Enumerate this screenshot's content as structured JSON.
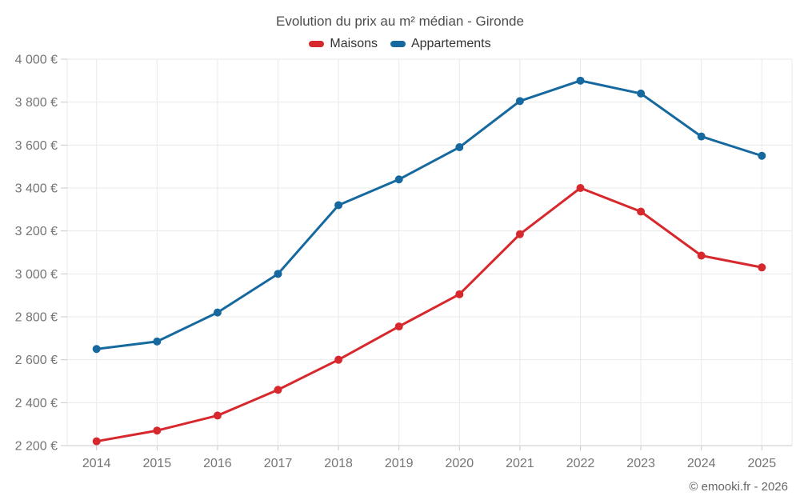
{
  "chart_data": {
    "type": "line",
    "title": "Evolution du prix au m² médian - Gironde",
    "categories": [
      "2014",
      "2015",
      "2016",
      "2017",
      "2018",
      "2019",
      "2020",
      "2021",
      "2022",
      "2023",
      "2024",
      "2025"
    ],
    "series": [
      {
        "name": "Maisons",
        "color": "#d7282d",
        "values": [
          2220,
          2270,
          2340,
          2460,
          2600,
          2755,
          2905,
          3185,
          3400,
          3290,
          3085,
          3030
        ]
      },
      {
        "name": "Appartements",
        "color": "#16699e",
        "values": [
          2650,
          2685,
          2820,
          3000,
          3320,
          3440,
          3590,
          3805,
          3900,
          3840,
          3640,
          3550
        ]
      }
    ],
    "xlabel": "",
    "ylabel": "",
    "ylim": [
      2200,
      4000
    ],
    "ytick_step": 200,
    "ytick_suffix": " €",
    "grid": true,
    "legend_position": "top",
    "colors": {
      "gridline": "#e9e9e9",
      "axis_line": "#c9c9c9",
      "tick": "#c9c9c9",
      "axis_label": "#757575"
    }
  },
  "footer": {
    "credit": "© emooki.fr - 2026"
  }
}
